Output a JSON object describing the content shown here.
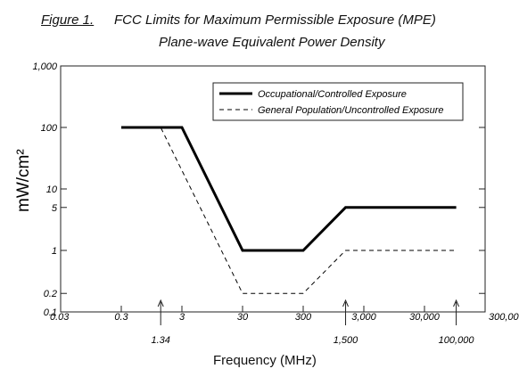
{
  "title": {
    "figure_label": "Figure 1.",
    "main": "FCC Limits for Maximum Permissible Exposure (MPE)",
    "subtitle": "Plane-wave Equivalent  Power Density"
  },
  "chart_data": {
    "type": "line",
    "xlabel": "Frequency (MHz)",
    "ylabel": "mW/cm²",
    "xscale": "log",
    "yscale": "log",
    "xlim": [
      0.03,
      300000
    ],
    "ylim": [
      0.1,
      1000
    ],
    "grid": false,
    "legend_position": "top-right",
    "x_ticks": [
      {
        "value": 0.03,
        "label": "0.03"
      },
      {
        "value": 0.3,
        "label": "0.3"
      },
      {
        "value": 3,
        "label": "3"
      },
      {
        "value": 30,
        "label": "30"
      },
      {
        "value": 300,
        "label": "300"
      },
      {
        "value": 3000,
        "label": "3,000"
      },
      {
        "value": 30000,
        "label": "30,000"
      },
      {
        "value": 300000,
        "label": "300,000"
      }
    ],
    "x_annotations": [
      {
        "value": 1.34,
        "label": "1.34"
      },
      {
        "value": 1500,
        "label": "1,500"
      },
      {
        "value": 100000,
        "label": "100,000"
      }
    ],
    "y_ticks": [
      {
        "value": 0.1,
        "label": "0.1"
      },
      {
        "value": 0.2,
        "label": "0.2"
      },
      {
        "value": 1,
        "label": "1"
      },
      {
        "value": 5,
        "label": "5"
      },
      {
        "value": 10,
        "label": "10"
      },
      {
        "value": 100,
        "label": "100"
      },
      {
        "value": 1000,
        "label": "1,000"
      }
    ],
    "series": [
      {
        "name": "Occupational/Controlled Exposure",
        "style": "solid",
        "x": [
          0.3,
          3,
          30,
          300,
          1500,
          100000
        ],
        "y": [
          100,
          100,
          1,
          1,
          5,
          5
        ]
      },
      {
        "name": "General Population/Uncontrolled Exposure",
        "style": "dashed",
        "x": [
          0.3,
          1.34,
          30,
          300,
          1500,
          100000
        ],
        "y": [
          100,
          100,
          0.2,
          0.2,
          1,
          1
        ]
      }
    ]
  }
}
